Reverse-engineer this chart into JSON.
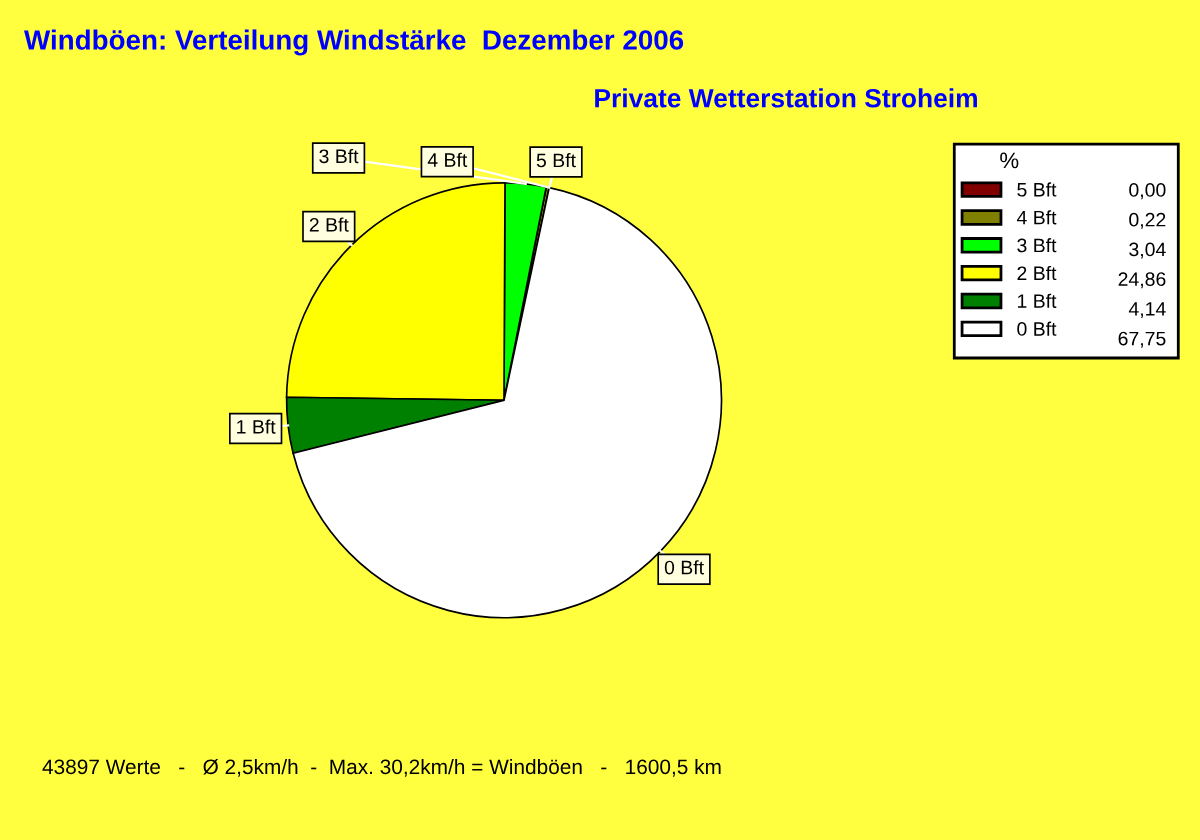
{
  "chart_data": {
    "type": "pie",
    "title": "Windböen: Verteilung Windstärke  Dezember 2006",
    "subtitle": "Private Wetterstation Stroheim",
    "categories": [
      "5 Bft",
      "4 Bft",
      "3 Bft",
      "2 Bft",
      "1 Bft",
      "0 Bft"
    ],
    "values": [
      0.0,
      0.22,
      3.04,
      24.86,
      4.14,
      67.75
    ],
    "value_labels": [
      "0,00",
      "0,22",
      "3,04",
      "24,86",
      "4,14",
      "67,75"
    ],
    "colors": [
      "#800000",
      "#808000",
      "#00ff00",
      "#ffff00",
      "#008000",
      "#ffffff"
    ],
    "legend_title": "%",
    "legend": "top right",
    "annotations": [
      "43897 Werte   -   Ø 2,5km/h  -  Max. 30,2km/h = Windböen   -   1600,5 km"
    ]
  }
}
